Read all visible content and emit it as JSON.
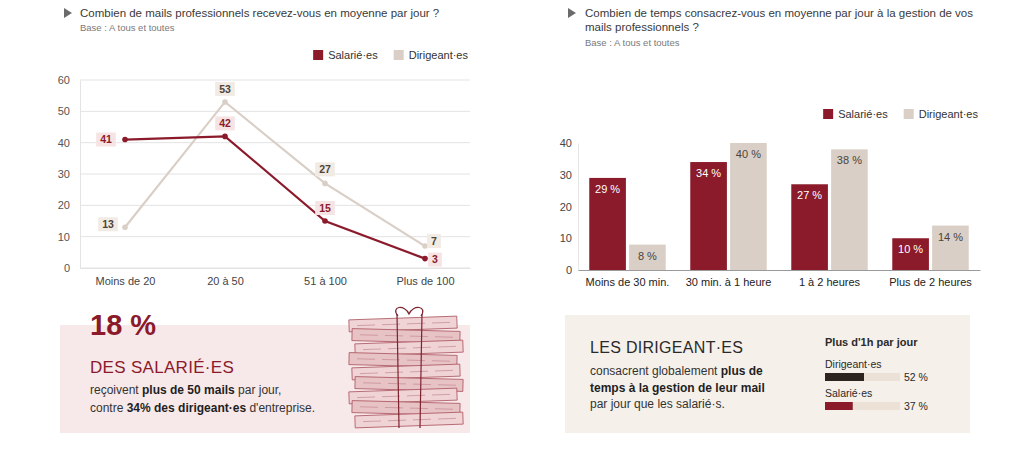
{
  "chart_data": [
    {
      "type": "line",
      "title": "Combien de mails professionnels recevez-vous en moyenne par jour ?",
      "subtitle": "Base : A tous et toutes",
      "categories": [
        "Moins de 20",
        "20 à 50",
        "51 à 100",
        "Plus de 100"
      ],
      "series": [
        {
          "name": "Salarié·es",
          "color": "#8b1a2b",
          "values": [
            41,
            42,
            15,
            3
          ]
        },
        {
          "name": "Dirigeant·es",
          "color": "#d9cfc6",
          "values": [
            13,
            53,
            27,
            7
          ]
        }
      ],
      "ylim": [
        0,
        60
      ],
      "yticks": [
        0,
        10,
        20,
        30,
        40,
        50,
        60
      ],
      "grid": true,
      "legend": "top-right",
      "data_labels": true,
      "marker": "circle"
    },
    {
      "type": "bar",
      "title": "Combien de temps consacrez-vous en moyenne par jour à la gestion de vos mails professionnels ?",
      "subtitle": "Base : A tous et toutes",
      "categories": [
        "Moins de 30 min.",
        "30 min. à 1 heure",
        "1 à 2 heures",
        "Plus de 2 heures"
      ],
      "series": [
        {
          "name": "Salarié·es",
          "color": "#8b1a2b",
          "values": [
            29,
            34,
            27,
            10
          ],
          "value_labels": [
            "29 %",
            "34 %",
            "27 %",
            "10 %"
          ]
        },
        {
          "name": "Dirigeant·es",
          "color": "#d9cfc6",
          "values": [
            8,
            40,
            38,
            14
          ],
          "value_labels": [
            "8 %",
            "40 %",
            "38 %",
            "14 %"
          ]
        }
      ],
      "ylim": [
        0,
        40
      ],
      "yticks": [
        0,
        10,
        20,
        30,
        40
      ],
      "grid": false,
      "legend": "top-right",
      "data_labels": true
    },
    {
      "type": "bar",
      "orientation": "horizontal",
      "title": "Plus d'1h par jour",
      "categories": [
        "Dirigeant·es",
        "Salarié·es"
      ],
      "values": [
        52,
        37
      ],
      "value_labels": [
        "52 %",
        "37 %"
      ],
      "colors": [
        "#2d2420",
        "#8b1a2b"
      ],
      "xlim": [
        0,
        100
      ],
      "tick_labels": false,
      "data_labels": true
    }
  ],
  "callouts": [
    {
      "headline": "18 %",
      "title": "DES SALARIÉ·ES",
      "lines": [
        [
          {
            "text": "reçoivent "
          },
          {
            "text": "plus de 50 mails",
            "bold": true
          },
          {
            "text": " par jour,"
          }
        ],
        [
          {
            "text": "contre "
          },
          {
            "text": "34% des dirigeant·es",
            "bold": true
          },
          {
            "text": " d'entreprise."
          }
        ]
      ]
    },
    {
      "title": "LES DIRIGEANT·ES",
      "lines": [
        [
          {
            "text": "consacrent globalement "
          },
          {
            "text": "plus de",
            "bold": true
          }
        ],
        [
          {
            "text": "temps à la gestion de leur mail",
            "bold": true
          }
        ],
        [
          {
            "text": "par jour que les salarié·s."
          }
        ]
      ]
    }
  ]
}
